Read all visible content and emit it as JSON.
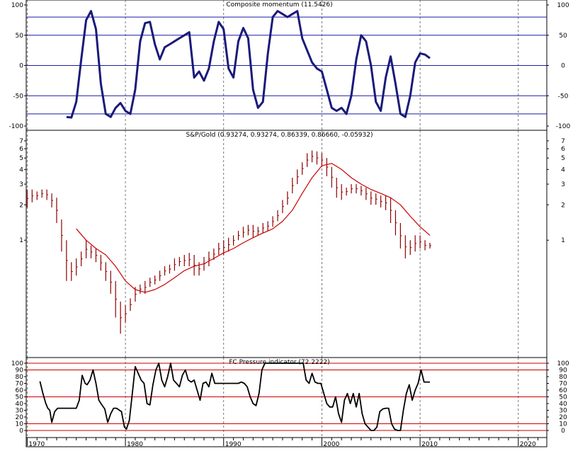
{
  "chart_data": [
    {
      "type": "line",
      "title": "Composite momentum (11.5426)",
      "ylim": [
        -100,
        100
      ],
      "yticks": [
        100,
        50,
        0,
        -50,
        -100
      ],
      "hlines": [
        80,
        50,
        0,
        -50,
        -80
      ],
      "line_color": "#1a1a7a",
      "hline_color": "#1a1aaa",
      "series": [
        {
          "x": [
            1974.0,
            1974.5,
            1975.0,
            1975.5,
            1976.0,
            1976.5,
            1977.0,
            1977.5,
            1978.0,
            1978.5,
            1979.0,
            1979.5,
            1980.0,
            1980.5,
            1981.0,
            1981.5,
            1982.0,
            1982.5,
            1983.0,
            1983.5,
            1984.0,
            1984.5,
            1985.0,
            1985.5,
            1986.0,
            1986.5,
            1987.0,
            1987.5,
            1988.0,
            1988.5,
            1989.0,
            1989.5,
            1990.0,
            1990.5,
            1991.0,
            1991.5,
            1992.0,
            1992.5,
            1993.0,
            1993.5,
            1994.0,
            1994.5,
            1995.0,
            1995.5,
            1996.0,
            1996.5,
            1997.0,
            1997.5,
            1998.0,
            1998.5,
            1999.0,
            1999.5,
            2000.0,
            2000.5,
            2001.0,
            2001.5,
            2002.0,
            2002.5,
            2003.0,
            2003.5,
            2004.0,
            2004.5,
            2005.0,
            2005.5,
            2006.0,
            2006.5,
            2007.0,
            2007.5,
            2008.0,
            2008.5,
            2009.0,
            2009.5,
            2010.0,
            2010.5,
            2011.0
          ],
          "y": [
            -85,
            -86,
            -60,
            10,
            75,
            90,
            60,
            -30,
            -80,
            -85,
            -70,
            -62,
            -75,
            -80,
            -40,
            40,
            70,
            72,
            35,
            10,
            30,
            35,
            40,
            45,
            50,
            55,
            -20,
            -10,
            -25,
            -5,
            40,
            72,
            60,
            -5,
            -20,
            40,
            62,
            45,
            -40,
            -70,
            -60,
            20,
            80,
            90,
            85,
            80,
            85,
            90,
            45,
            25,
            5,
            -5,
            -10,
            -40,
            -70,
            -75,
            -70,
            -80,
            -50,
            10,
            50,
            40,
            0,
            -60,
            -75,
            -20,
            15,
            -30,
            -80,
            -85,
            -50,
            5,
            20,
            18,
            12
          ]
        }
      ]
    },
    {
      "type": "line",
      "title": "S&P/Gold (0.93274, 0.93274, 0.86339, 0.86660, -0.05932)",
      "yscale": "log",
      "ylim": [
        0.15,
        7.5
      ],
      "yticks": [
        7,
        6,
        5,
        4,
        3,
        2,
        1
      ],
      "series": [
        {
          "type": "bar-ohlc",
          "color": "#8b0000",
          "x": [
            1970.0,
            1970.5,
            1971.0,
            1971.5,
            1972.0,
            1972.5,
            1973.0,
            1973.5,
            1974.0,
            1974.5,
            1975.0,
            1975.5,
            1976.0,
            1976.5,
            1977.0,
            1977.5,
            1978.0,
            1978.5,
            1979.0,
            1979.5,
            1980.0,
            1980.5,
            1981.0,
            1981.5,
            1982.0,
            1982.5,
            1983.0,
            1983.5,
            1984.0,
            1984.5,
            1985.0,
            1985.5,
            1986.0,
            1986.5,
            1987.0,
            1987.5,
            1988.0,
            1988.5,
            1989.0,
            1989.5,
            1990.0,
            1990.5,
            1991.0,
            1991.5,
            1992.0,
            1992.5,
            1993.0,
            1993.5,
            1994.0,
            1994.5,
            1995.0,
            1995.5,
            1996.0,
            1996.5,
            1997.0,
            1997.5,
            1998.0,
            1998.5,
            1999.0,
            1999.5,
            2000.0,
            2000.5,
            2001.0,
            2001.5,
            2002.0,
            2002.5,
            2003.0,
            2003.5,
            2004.0,
            2004.5,
            2005.0,
            2005.5,
            2006.0,
            2006.5,
            2007.0,
            2007.5,
            2008.0,
            2008.5,
            2009.0,
            2009.5,
            2010.0,
            2010.5,
            2011.0
          ],
          "high": [
            2.7,
            2.7,
            2.6,
            2.7,
            2.7,
            2.5,
            2.3,
            1.5,
            1.0,
            0.65,
            0.7,
            0.8,
            1.0,
            0.9,
            0.85,
            0.75,
            0.65,
            0.55,
            0.45,
            0.3,
            0.28,
            0.32,
            0.4,
            0.42,
            0.45,
            0.48,
            0.5,
            0.55,
            0.6,
            0.62,
            0.7,
            0.72,
            0.75,
            0.78,
            0.75,
            0.65,
            0.72,
            0.8,
            0.85,
            0.95,
            1.0,
            1.05,
            1.1,
            1.2,
            1.3,
            1.35,
            1.35,
            1.3,
            1.4,
            1.45,
            1.6,
            1.8,
            2.2,
            2.6,
            3.4,
            4.0,
            4.6,
            5.5,
            5.8,
            5.7,
            5.5,
            5.0,
            4.2,
            3.4,
            3.0,
            2.8,
            3.0,
            3.0,
            2.9,
            2.8,
            2.6,
            2.5,
            2.4,
            2.4,
            2.3,
            1.8,
            1.4,
            1.1,
            1.0,
            1.1,
            1.1,
            1.0,
            0.95
          ],
          "low": [
            1.9,
            2.1,
            2.2,
            2.3,
            2.2,
            1.9,
            1.4,
            0.8,
            0.45,
            0.45,
            0.5,
            0.6,
            0.7,
            0.7,
            0.65,
            0.55,
            0.45,
            0.35,
            0.22,
            0.16,
            0.2,
            0.25,
            0.3,
            0.35,
            0.35,
            0.4,
            0.42,
            0.45,
            0.5,
            0.52,
            0.55,
            0.6,
            0.6,
            0.6,
            0.5,
            0.5,
            0.55,
            0.6,
            0.68,
            0.75,
            0.75,
            0.8,
            0.9,
            1.0,
            1.05,
            1.1,
            1.05,
            1.1,
            1.15,
            1.2,
            1.3,
            1.45,
            1.7,
            2.0,
            2.5,
            3.0,
            3.6,
            4.2,
            4.6,
            4.4,
            4.2,
            3.5,
            2.8,
            2.3,
            2.2,
            2.4,
            2.5,
            2.5,
            2.4,
            2.2,
            2.0,
            2.0,
            1.9,
            1.8,
            1.4,
            1.1,
            0.85,
            0.7,
            0.75,
            0.8,
            0.85,
            0.82,
            0.85
          ]
        },
        {
          "type": "line",
          "color": "#cc0000",
          "x": [
            1975.0,
            1976.0,
            1977.0,
            1978.0,
            1979.0,
            1980.0,
            1981.0,
            1982.0,
            1983.0,
            1984.0,
            1985.0,
            1986.0,
            1987.0,
            1988.0,
            1989.0,
            1990.0,
            1991.0,
            1992.0,
            1993.0,
            1994.0,
            1995.0,
            1996.0,
            1997.0,
            1998.0,
            1999.0,
            2000.0,
            2001.0,
            2002.0,
            2003.0,
            2004.0,
            2005.0,
            2006.0,
            2007.0,
            2008.0,
            2009.0,
            2010.0,
            2011.0
          ],
          "y": [
            1.25,
            1.0,
            0.85,
            0.75,
            0.6,
            0.45,
            0.38,
            0.36,
            0.38,
            0.42,
            0.48,
            0.55,
            0.6,
            0.63,
            0.7,
            0.78,
            0.85,
            0.95,
            1.05,
            1.15,
            1.25,
            1.45,
            1.8,
            2.5,
            3.4,
            4.3,
            4.5,
            4.0,
            3.4,
            3.0,
            2.7,
            2.5,
            2.3,
            2.0,
            1.6,
            1.3,
            1.1
          ]
        }
      ]
    },
    {
      "type": "line",
      "title": "FC Pressure indicator (72.2222)",
      "ylim": [
        0,
        100
      ],
      "yticks": [
        100,
        90,
        80,
        70,
        60,
        50,
        40,
        30,
        20,
        10,
        0
      ],
      "hlines": [
        100,
        90,
        50,
        10,
        0
      ],
      "line_color": "#000000",
      "hline_color": "#cc0000",
      "series": [
        {
          "x": [
            1971.3,
            1971.6,
            1971.9,
            1972.1,
            1972.3,
            1972.5,
            1972.8,
            1973.1,
            1973.5,
            1974.0,
            1974.5,
            1975.0,
            1975.3,
            1975.6,
            1975.9,
            1976.1,
            1976.4,
            1976.7,
            1977.0,
            1977.3,
            1977.6,
            1977.9,
            1978.2,
            1978.5,
            1978.8,
            1979.1,
            1979.4,
            1979.6,
            1979.9,
            1980.1,
            1980.4,
            1980.7,
            1981.0,
            1981.3,
            1981.6,
            1981.9,
            1982.2,
            1982.5,
            1982.8,
            1983.1,
            1983.4,
            1983.7,
            1984.0,
            1984.3,
            1984.6,
            1984.9,
            1985.2,
            1985.5,
            1985.8,
            1986.1,
            1986.4,
            1986.7,
            1987.0,
            1987.3,
            1987.6,
            1987.9,
            1988.2,
            1988.5,
            1988.8,
            1989.1,
            1989.4,
            1989.7,
            1990.0,
            1990.3,
            1990.6,
            1990.9,
            1991.2,
            1991.5,
            1991.8,
            1992.1,
            1992.4,
            1992.7,
            1993.0,
            1993.3,
            1993.6,
            1993.9,
            1994.2,
            1994.5,
            1994.8,
            1995.1,
            1995.4,
            1995.7,
            1996.0,
            1996.3,
            1996.6,
            1996.9,
            1997.2,
            1997.5,
            1997.8,
            1998.1,
            1998.4,
            1998.7,
            1999.0,
            1999.3,
            1999.6,
            1999.9,
            2000.2,
            2000.5,
            2000.8,
            2001.1,
            2001.4,
            2001.7,
            2002.0,
            2002.3,
            2002.6,
            2002.9,
            2003.2,
            2003.5,
            2003.8,
            2004.1,
            2004.4,
            2004.7,
            2005.0,
            2005.3,
            2005.6,
            2005.9,
            2006.2,
            2006.5,
            2006.8,
            2007.1,
            2007.4,
            2007.7,
            2008.0,
            2008.3,
            2008.6,
            2008.9,
            2009.2,
            2009.5,
            2009.8,
            2010.1,
            2010.4,
            2010.7,
            2011.0
          ],
          "y": [
            73,
            55,
            40,
            33,
            30,
            12,
            28,
            33,
            33,
            33,
            33,
            33,
            45,
            82,
            70,
            68,
            75,
            90,
            70,
            45,
            38,
            32,
            12,
            25,
            33,
            33,
            30,
            28,
            5,
            2,
            15,
            55,
            95,
            85,
            75,
            70,
            40,
            38,
            68,
            90,
            100,
            75,
            65,
            80,
            100,
            75,
            70,
            65,
            82,
            90,
            75,
            72,
            75,
            60,
            45,
            70,
            72,
            65,
            85,
            70,
            70,
            70,
            70,
            70,
            70,
            70,
            70,
            70,
            72,
            70,
            65,
            50,
            40,
            37,
            55,
            90,
            100,
            100,
            100,
            100,
            100,
            100,
            100,
            100,
            100,
            100,
            100,
            100,
            100,
            100,
            75,
            70,
            85,
            72,
            70,
            70,
            55,
            40,
            35,
            35,
            50,
            25,
            12,
            45,
            55,
            40,
            55,
            35,
            55,
            25,
            10,
            5,
            0,
            0,
            5,
            28,
            32,
            33,
            33,
            10,
            2,
            0,
            0,
            30,
            55,
            68,
            45,
            60,
            70,
            90,
            72,
            72,
            72
          ]
        }
      ]
    }
  ],
  "x_axis": {
    "xlim": [
      1969.9,
      2022.9
    ],
    "ticks": [
      1970,
      1980,
      1990,
      2000,
      2010,
      2020
    ],
    "tick_labels": [
      "1970",
      "1980",
      "1990",
      "2000",
      "2010",
      "2020"
    ]
  },
  "colors": {
    "grid_dashed": "#555555",
    "frame": "#000000",
    "background": "#ffffff"
  }
}
